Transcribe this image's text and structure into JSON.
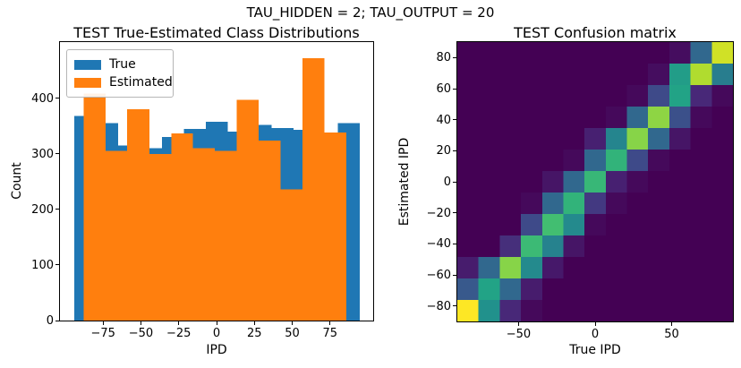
{
  "figure": {
    "suptitle": "TAU_HIDDEN = 2; TAU_OUTPUT = 20",
    "background": "#ffffff"
  },
  "chart_data": [
    {
      "type": "histogram",
      "title": "TEST True-Estimated Class Distributions",
      "xlabel": "IPD",
      "ylabel": "Count",
      "xlim": [
        -103.5,
        103.5
      ],
      "ylim": [
        0,
        501
      ],
      "grid": false,
      "legend_position": "upper left",
      "x_ticks": {
        "values": [
          -75,
          -50,
          -25,
          0,
          25,
          50,
          75
        ],
        "labels": [
          "−75",
          "−50",
          "−25",
          "0",
          "25",
          "50",
          "75"
        ]
      },
      "y_ticks": {
        "values": [
          0,
          100,
          200,
          300,
          400
        ],
        "labels": [
          "0",
          "100",
          "200",
          "300",
          "400"
        ]
      },
      "series": [
        {
          "name": "True",
          "color": "#1f77b4",
          "bin_edges": [
            -94,
            -79.5,
            -65,
            -50.5,
            -36,
            -21.5,
            -7,
            7.5,
            22,
            36.5,
            51,
            65.5,
            80,
            94.5
          ],
          "counts": [
            368,
            355,
            315,
            310,
            330,
            345,
            358,
            340,
            352,
            346,
            343,
            330,
            355
          ]
        },
        {
          "name": "Estimated",
          "color": "#ff7f0e",
          "bin_edges": [
            -87.9,
            -73.4,
            -59,
            -44.5,
            -30,
            -15.6,
            -1.1,
            13.4,
            27.8,
            42.3,
            56.8,
            71.2,
            85.7
          ],
          "counts": [
            408,
            305,
            380,
            300,
            337,
            310,
            305,
            397,
            324,
            236,
            472,
            338
          ]
        }
      ]
    },
    {
      "type": "heatmap",
      "title": "TEST Confusion matrix",
      "xlabel": "True IPD",
      "ylabel": "Estimated IPD",
      "colormap": "viridis",
      "extent": [
        -90,
        90,
        -90,
        90
      ],
      "n_classes": 13,
      "class_centers": [
        -83.1,
        -69.2,
        -55.4,
        -41.5,
        -27.7,
        -13.8,
        0,
        13.8,
        27.7,
        41.5,
        55.4,
        69.2,
        83.1
      ],
      "x_ticks": {
        "values": [
          -50,
          0,
          50
        ],
        "labels": [
          "−50",
          "0",
          "50"
        ]
      },
      "y_ticks": {
        "values": [
          80,
          60,
          40,
          20,
          0,
          -20,
          -40,
          -60,
          -80
        ],
        "labels": [
          "80",
          "60",
          "40",
          "20",
          "0",
          "−20",
          "−40",
          "−60",
          "−80"
        ]
      },
      "values_are": "normalized color intensity 0-1 (no colorbar or cell counts shown in figure)",
      "matrix_rows_top_to_bottom": [
        [
          0,
          0,
          0,
          0,
          0,
          0,
          0,
          0,
          0,
          0,
          0.03,
          0.3,
          0.93
        ],
        [
          0,
          0,
          0,
          0,
          0,
          0,
          0,
          0,
          0,
          0.03,
          0.55,
          0.88,
          0.38
        ],
        [
          0,
          0,
          0,
          0,
          0,
          0,
          0,
          0,
          0.02,
          0.2,
          0.58,
          0.1,
          0.02
        ],
        [
          0,
          0,
          0,
          0,
          0,
          0,
          0,
          0.02,
          0.3,
          0.83,
          0.22,
          0.02,
          0
        ],
        [
          0,
          0,
          0,
          0,
          0,
          0,
          0.08,
          0.42,
          0.82,
          0.3,
          0.05,
          0,
          0
        ],
        [
          0,
          0,
          0,
          0,
          0,
          0.02,
          0.3,
          0.65,
          0.2,
          0.02,
          0,
          0,
          0
        ],
        [
          0,
          0,
          0,
          0,
          0.05,
          0.3,
          0.67,
          0.08,
          0.02,
          0,
          0,
          0,
          0
        ],
        [
          0,
          0,
          0,
          0.02,
          0.3,
          0.65,
          0.15,
          0.02,
          0,
          0,
          0,
          0,
          0
        ],
        [
          0,
          0,
          0,
          0.2,
          0.7,
          0.45,
          0.02,
          0,
          0,
          0,
          0,
          0,
          0
        ],
        [
          0,
          0,
          0.12,
          0.68,
          0.4,
          0.05,
          0,
          0,
          0,
          0,
          0,
          0,
          0
        ],
        [
          0.07,
          0.3,
          0.82,
          0.45,
          0.06,
          0,
          0,
          0,
          0,
          0,
          0,
          0,
          0
        ],
        [
          0.25,
          0.58,
          0.3,
          0.07,
          0,
          0,
          0,
          0,
          0,
          0,
          0,
          0,
          0
        ],
        [
          1.0,
          0.5,
          0.1,
          0.02,
          0,
          0,
          0,
          0,
          0,
          0,
          0,
          0,
          0
        ]
      ]
    }
  ]
}
